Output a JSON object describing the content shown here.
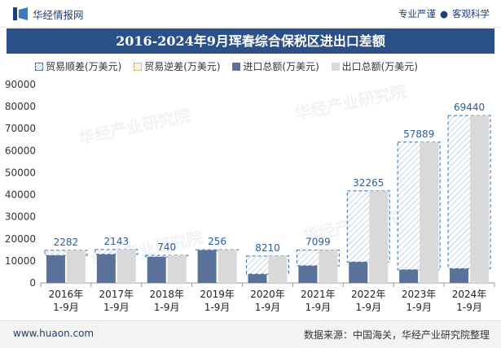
{
  "header": {
    "brand": "华经情报网",
    "tagline_left": "专业严谨",
    "tagline_sep": "●",
    "tagline_right": "客观科学"
  },
  "title": "2016-2024年9月珲春综合保税区进出口差额",
  "legend": {
    "surplus": "贸易顺差(万美元)",
    "deficit": "贸易逆差(万美元)",
    "import": "进口总额(万美元)",
    "export": "出口总额(万美元)"
  },
  "watermark": "华经产业研究院",
  "footer": {
    "website": "www.huaon.com",
    "source": "数据来源：中国海关，华经产业研究院整理"
  },
  "colors": {
    "title_bg": "#2b4f88",
    "import": "#5a7199",
    "export": "#d9d9d9",
    "surplus_border": "#3a6fa8",
    "label": "#2b5c9c"
  },
  "chart_data": {
    "type": "bar",
    "title": "2016-2024年9月珲春综合保税区进出口差额",
    "categories": [
      "2016年\n1-9月",
      "2017年\n1-9月",
      "2018年\n1-9月",
      "2019年\n1-9月",
      "2020年\n1-9月",
      "2021年\n1-9月",
      "2022年\n1-9月",
      "2023年\n1-9月",
      "2024年\n1-9月"
    ],
    "ylim": [
      0,
      90000
    ],
    "yticks": [
      0,
      10000,
      20000,
      30000,
      40000,
      50000,
      60000,
      70000,
      80000,
      90000
    ],
    "series": [
      {
        "name": "进口总额(万美元)",
        "values": [
          12500,
          13000,
          11800,
          14800,
          4000,
          7800,
          9500,
          6000,
          6500
        ]
      },
      {
        "name": "出口总额(万美元)",
        "values": [
          14782,
          15143,
          12540,
          15056,
          12210,
          14899,
          41765,
          63889,
          75940
        ]
      },
      {
        "name": "贸易顺差(万美元)",
        "values": [
          2282,
          2143,
          740,
          256,
          8210,
          7099,
          32265,
          57889,
          69440
        ]
      }
    ],
    "data_labels": [
      "2282",
      "2143",
      "740",
      "256",
      "8210",
      "7099",
      "32265",
      "57889",
      "69440"
    ],
    "legend_position": "top"
  }
}
